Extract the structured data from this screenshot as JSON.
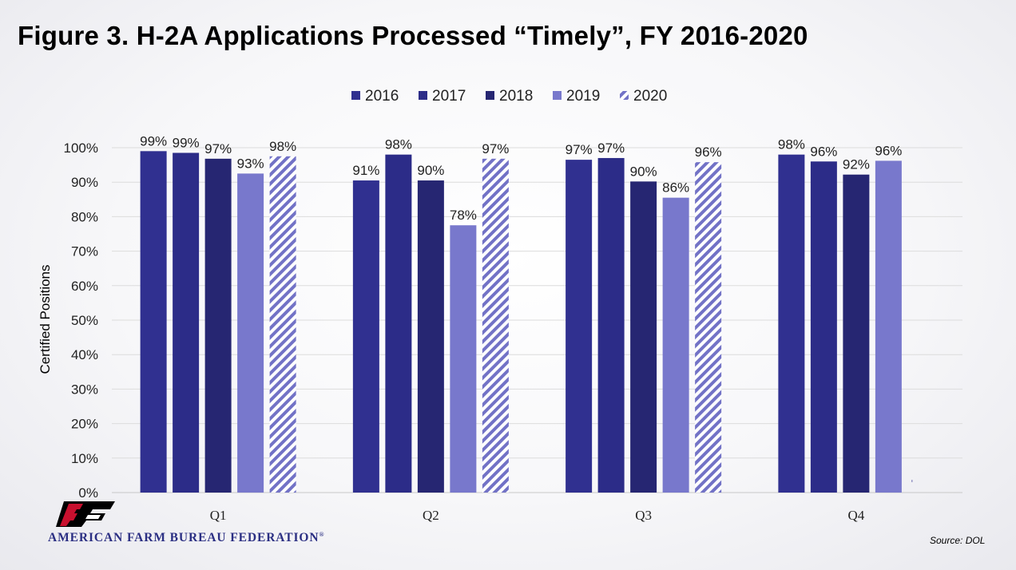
{
  "header": {
    "title": "Figure 3. H-2A Applications Processed “Timely”, FY 2016-2020"
  },
  "footer": {
    "logo_text": "AMERICAN FARM BUREAU FEDERATION",
    "logo_registered": "®",
    "source": "Source: DOL"
  },
  "colors": {
    "2016": "#303090",
    "2017": "#2c2c88",
    "2018": "#262672",
    "2019": "#7878cc",
    "2020": "#7272c6",
    "brand": "#2b2f83"
  },
  "chart_data": {
    "type": "bar",
    "title": "",
    "xlabel": "",
    "ylabel": "Certified Positions",
    "ylim": [
      0,
      1
    ],
    "yticks": [
      "0%",
      "10%",
      "20%",
      "30%",
      "40%",
      "50%",
      "60%",
      "70%",
      "80%",
      "90%",
      "100%"
    ],
    "categories": [
      "Q1",
      "Q2",
      "Q3",
      "Q4"
    ],
    "legend": "top",
    "grid": true,
    "series": [
      {
        "name": "2016",
        "values": [
          0.99,
          0.905,
          0.965,
          0.98
        ],
        "labels": [
          "99%",
          "91%",
          "97%",
          "98%"
        ],
        "pattern": "solid"
      },
      {
        "name": "2017",
        "values": [
          0.985,
          0.98,
          0.97,
          0.96
        ],
        "labels": [
          "99%",
          "98%",
          "97%",
          "96%"
        ],
        "pattern": "solid"
      },
      {
        "name": "2018",
        "values": [
          0.968,
          0.905,
          0.902,
          0.922
        ],
        "labels": [
          "97%",
          "90%",
          "90%",
          "92%"
        ],
        "pattern": "solid"
      },
      {
        "name": "2019",
        "values": [
          0.925,
          0.775,
          0.855,
          0.962
        ],
        "labels": [
          "93%",
          "78%",
          "86%",
          "96%"
        ],
        "pattern": "solid"
      },
      {
        "name": "2020",
        "values": [
          0.975,
          0.968,
          0.958,
          null
        ],
        "labels": [
          "98%",
          "97%",
          "96%",
          ""
        ],
        "pattern": "diagonal-stripes"
      }
    ]
  }
}
